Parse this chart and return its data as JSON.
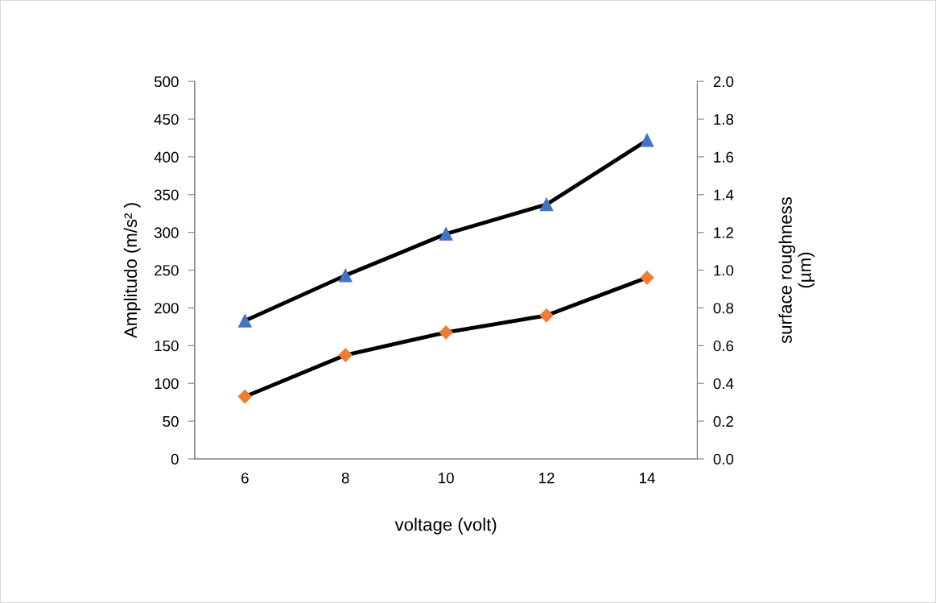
{
  "chart_data": {
    "type": "line",
    "xlabel": "voltage (volt)",
    "ylabel": "Amplitudo (m/s² )",
    "y2label": "surface roughness\n(µm)",
    "categories": [
      "6",
      "8",
      "10",
      "12",
      "14"
    ],
    "series": [
      {
        "color": "#4472c4",
        "marker": "triangle",
        "values": [
          183,
          243,
          298,
          337,
          422
        ]
      },
      {
        "color": "#ed7d31",
        "marker": "diamond",
        "axis": "y2",
        "values": [
          0.33,
          0.55,
          0.67,
          0.76,
          0.96
        ]
      }
    ],
    "ylim": [
      0,
      500
    ],
    "yticks": [
      0,
      50,
      100,
      150,
      200,
      250,
      300,
      350,
      400,
      450,
      500
    ],
    "y2lim": [
      0,
      2
    ],
    "y2ticks": [
      {
        "value": 0,
        "label": "0.0"
      },
      0.2,
      0.4,
      0.6,
      0.8,
      {
        "value": 1,
        "label": "1.0"
      },
      1.2,
      1.4,
      1.6,
      1.8,
      {
        "value": 2,
        "label": "2.0"
      }
    ],
    "line_style": "solid",
    "grid": false,
    "legend": false
  }
}
